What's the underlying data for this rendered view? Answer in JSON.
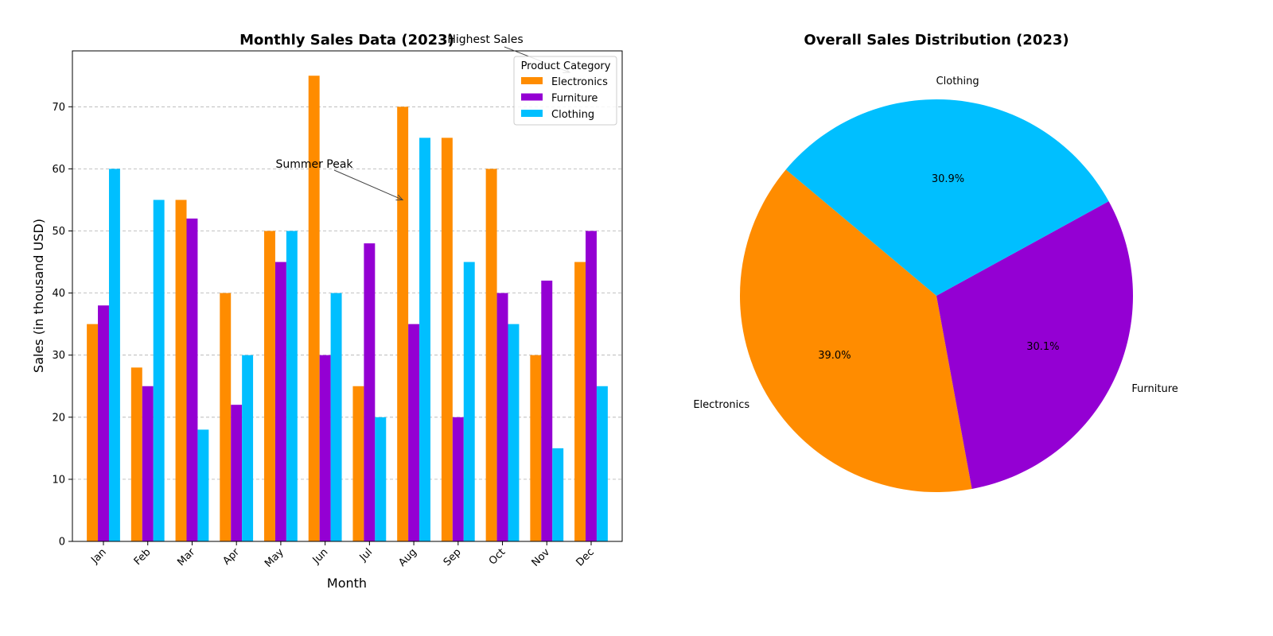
{
  "chart_data": [
    {
      "type": "bar",
      "title": "Monthly Sales Data (2023)",
      "xlabel": "Month",
      "ylabel": "Sales (in thousand USD)",
      "categories": [
        "Jan",
        "Feb",
        "Mar",
        "Apr",
        "May",
        "Jun",
        "Jul",
        "Aug",
        "Sep",
        "Oct",
        "Nov",
        "Dec"
      ],
      "series": [
        {
          "name": "Electronics",
          "color": "#FF8C00",
          "values": [
            35,
            28,
            55,
            40,
            50,
            75,
            25,
            70,
            65,
            60,
            30,
            45
          ]
        },
        {
          "name": "Furniture",
          "color": "#9400D3",
          "values": [
            38,
            25,
            52,
            22,
            45,
            30,
            48,
            35,
            20,
            40,
            42,
            50
          ]
        },
        {
          "name": "Clothing",
          "color": "#00BFFF",
          "values": [
            60,
            55,
            18,
            30,
            50,
            40,
            20,
            65,
            45,
            35,
            15,
            25
          ]
        }
      ],
      "ylim": [
        0,
        79
      ],
      "yticks": [
        0,
        10,
        20,
        30,
        40,
        50,
        60,
        70
      ],
      "grid": "y, dashed",
      "legend": {
        "title": "Product Category",
        "placement": "top-right"
      },
      "annotations": [
        {
          "text": "Summer Peak",
          "target": {
            "category": "Aug",
            "value": 55
          }
        },
        {
          "text": "Highest Sales",
          "target": {
            "category": "Dec",
            "value": 75
          }
        }
      ]
    },
    {
      "type": "pie",
      "title": "Overall Sales Distribution (2023)",
      "slices": [
        {
          "label": "Electronics",
          "percent_label": "39.0%",
          "value": 39.0,
          "color": "#FF8C00"
        },
        {
          "label": "Furniture",
          "percent_label": "30.1%",
          "value": 30.1,
          "color": "#9400D3"
        },
        {
          "label": "Clothing",
          "percent_label": "30.9%",
          "value": 30.9,
          "color": "#00BFFF"
        }
      ]
    }
  ]
}
